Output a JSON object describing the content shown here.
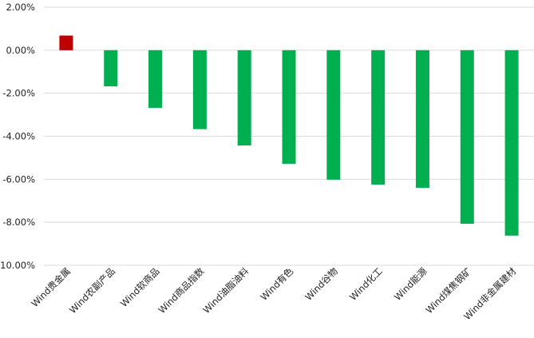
{
  "chart_data": {
    "type": "bar",
    "title": "",
    "xlabel": "",
    "ylabel": "",
    "ylim": [
      -10,
      2
    ],
    "yticks": [
      2,
      0,
      -2,
      -4,
      -6,
      -8,
      -10
    ],
    "ytick_labels": [
      "2.00%",
      "0.00%",
      "-2.00%",
      "-4.00%",
      "-6.00%",
      "-8.00%",
      "-10.00%"
    ],
    "grid": true,
    "legend": "none",
    "categories": [
      "Wind贵金属",
      "Wind农副产品",
      "Wind软商品",
      "Wind商品指数",
      "Wind油脂油料",
      "Wind有色",
      "Wind谷物",
      "Wind化工",
      "Wind能源",
      "Wind煤焦钢矿",
      "Wind非金属建材"
    ],
    "values": [
      0.68,
      -1.68,
      -2.68,
      -3.67,
      -4.43,
      -5.28,
      -6.02,
      -6.25,
      -6.4,
      -8.07,
      -8.62
    ],
    "colors": {
      "positive": "#c00000",
      "negative": "#00b050",
      "grid": "#d9d9d9"
    }
  }
}
